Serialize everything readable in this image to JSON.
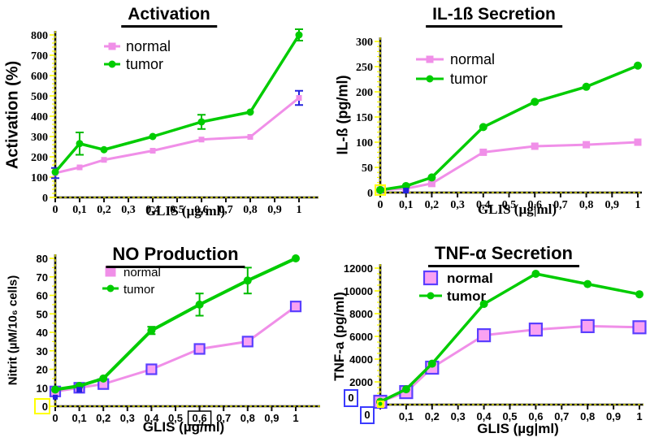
{
  "figure": {
    "background": "#FFFFFF"
  },
  "colors": {
    "normal_line": "#F08FE8",
    "normal_marker_fill": "#F9A2F2",
    "normal_marker_outline": "#5A3FFF",
    "tumor_line": "#00CC00",
    "error_blue": "#2222DD",
    "tick_yellow": "#FFFF00",
    "axis_black": "#111111",
    "highlight_blue_box": "#3B3BFF",
    "highlight_yellow_box": "#FFFF00"
  },
  "chart_data": [
    {
      "type": "line",
      "title": "Activation",
      "ylabel": "Activation (%)",
      "xlabel": "GLIS (µg/ml)",
      "xlim": [
        0,
        1
      ],
      "ylim": [
        0,
        800
      ],
      "x_tick_labels": [
        "0",
        "0,1",
        "0,2",
        "0,3",
        "0,4",
        "0,5",
        "0,6",
        "0,7",
        "0,8",
        "0,9",
        "1"
      ],
      "x_tick_values": [
        0,
        0.1,
        0.2,
        0.3,
        0.4,
        0.5,
        0.6,
        0.7,
        0.8,
        0.9,
        1
      ],
      "y_tick_labels": [
        "0",
        "100",
        "200",
        "300",
        "400",
        "500",
        "600",
        "700",
        "800"
      ],
      "y_tick_values": [
        0,
        100,
        200,
        300,
        400,
        500,
        600,
        700,
        800
      ],
      "grid": false,
      "legend_position": "top-center-inside",
      "x": [
        0,
        0.1,
        0.2,
        0.4,
        0.6,
        0.8,
        1
      ],
      "series": [
        {
          "name": "normal",
          "marker": "square",
          "color": "#F08FE8",
          "values": [
            120,
            148,
            185,
            230,
            285,
            298,
            490
          ],
          "errors": [
            25,
            0,
            0,
            0,
            0,
            0,
            35
          ],
          "error_color": "#2222DD"
        },
        {
          "name": "tumor",
          "marker": "circle",
          "color": "#00CC00",
          "values": [
            125,
            265,
            235,
            300,
            372,
            420,
            800
          ],
          "errors": [
            0,
            55,
            0,
            0,
            35,
            0,
            28
          ],
          "error_color": "#00BB00"
        }
      ],
      "decorations": []
    },
    {
      "type": "line",
      "title": "IL-1ß Secretion",
      "ylabel": "IL-ß (pg/ml)",
      "xlabel": "GLIS (µg|ml)",
      "xlim": [
        0,
        1
      ],
      "ylim": [
        0,
        300
      ],
      "x_tick_labels": [
        "0",
        "0,1",
        "0,2",
        "0,3",
        "0,4",
        "0,5",
        "0,6",
        "0,7",
        "0,8",
        "0,9",
        "1"
      ],
      "x_tick_values": [
        0,
        0.1,
        0.2,
        0.3,
        0.4,
        0.5,
        0.6,
        0.7,
        0.8,
        0.9,
        1
      ],
      "y_tick_labels": [
        "0",
        "50",
        "100",
        "150",
        "200",
        "250",
        "300"
      ],
      "y_tick_values": [
        0,
        50,
        100,
        150,
        200,
        250,
        300
      ],
      "grid": false,
      "legend_position": "top-center-inside",
      "x": [
        0,
        0.1,
        0.2,
        0.4,
        0.6,
        0.8,
        1
      ],
      "series": [
        {
          "name": "normal",
          "marker": "square",
          "color": "#F08FE8",
          "values": [
            5,
            8,
            18,
            80,
            92,
            95,
            100
          ],
          "errors": [
            0,
            0,
            0,
            0,
            0,
            0,
            0
          ],
          "error_color": "#2222DD"
        },
        {
          "name": "tumor",
          "marker": "circle",
          "color": "#00CC00",
          "values": [
            5,
            13,
            30,
            130,
            180,
            210,
            252
          ],
          "errors": [
            0,
            0,
            0,
            0,
            0,
            0,
            0
          ],
          "error_color": "#00BB00"
        }
      ],
      "decorations": [
        "yellow-box-around-origin-marker",
        "blue-square-near-x-0.1"
      ]
    },
    {
      "type": "line",
      "title": "NO Production",
      "ylabel": "Nitrit (µM/10₆ cells)",
      "xlabel": "GLIS (µg/ml)",
      "xlim": [
        0,
        1
      ],
      "ylim": [
        0,
        80
      ],
      "x_tick_labels": [
        "0",
        "0,1",
        "0,2",
        "0,3",
        "0,4",
        "0,5",
        "0,6",
        "0,7",
        "0,8",
        "0,9",
        "1"
      ],
      "x_tick_values": [
        0,
        0.1,
        0.2,
        0.3,
        0.4,
        0.5,
        0.6,
        0.7,
        0.8,
        0.9,
        1
      ],
      "y_tick_labels": [
        "0",
        "10",
        "20",
        "30",
        "40",
        "50",
        "60",
        "70",
        "80"
      ],
      "y_tick_values": [
        0,
        10,
        20,
        30,
        40,
        50,
        60,
        70,
        80
      ],
      "grid": false,
      "legend_position": "top-left-inside",
      "x": [
        0,
        0.1,
        0.2,
        0.4,
        0.6,
        0.8,
        1
      ],
      "series": [
        {
          "name": "normal",
          "marker": "square-outlined",
          "color": "#F08FE8",
          "values": [
            8,
            10,
            12,
            20,
            31,
            35,
            54
          ],
          "errors": [
            0,
            0,
            0,
            0,
            0,
            0,
            0
          ],
          "error_color": "#2222DD"
        },
        {
          "name": "tumor",
          "marker": "circle",
          "color": "#00CC00",
          "values": [
            9,
            11,
            15,
            41,
            55,
            68,
            80
          ],
          "errors": [
            0,
            0,
            0,
            2,
            6,
            7,
            0
          ],
          "error_color": "#00BB00"
        }
      ],
      "decorations": [
        "yellow-box-y-zero-label",
        "black-box-x-tick-0.6",
        "blue-square-origin",
        "blue-square-near-x-0.1"
      ],
      "boxed_x_tick": "0,6",
      "boxed_y_tick": "0"
    },
    {
      "type": "line",
      "title": "TNF-α Secretion",
      "ylabel": "TNF-a (pg/ml)",
      "xlabel": "GLIS (µg|ml)",
      "xlim": [
        0,
        1
      ],
      "ylim": [
        0,
        12000
      ],
      "x_tick_labels": [
        "0",
        "0,1",
        "0,2",
        "0,3",
        "0,4",
        "0,5",
        "0,6",
        "0,7",
        "0,8",
        "0,9",
        "1"
      ],
      "x_tick_values": [
        0,
        0.1,
        0.2,
        0.3,
        0.4,
        0.5,
        0.6,
        0.7,
        0.8,
        0.9,
        1
      ],
      "y_tick_labels": [
        "0",
        "2000",
        "4000",
        "6000",
        "8000",
        "10000",
        "12000"
      ],
      "y_tick_values": [
        0,
        2000,
        4000,
        6000,
        8000,
        10000,
        12000
      ],
      "grid": false,
      "legend_position": "top-left-inside",
      "x": [
        0,
        0.1,
        0.2,
        0.4,
        0.6,
        0.8,
        1
      ],
      "series": [
        {
          "name": "normal",
          "marker": "square-outlined",
          "color": "#F08FE8",
          "values": [
            250,
            1100,
            3250,
            6100,
            6600,
            6900,
            6800
          ],
          "errors": [
            0,
            0,
            0,
            0,
            0,
            0,
            0
          ],
          "error_color": "#2222DD"
        },
        {
          "name": "tumor",
          "marker": "circle",
          "color": "#00CC00",
          "values": [
            250,
            1350,
            3600,
            8850,
            11500,
            10600,
            9700
          ],
          "errors": [
            0,
            0,
            0,
            0,
            0,
            0,
            0
          ],
          "error_color": "#00BB00"
        }
      ],
      "decorations": [
        "blue-box-y-zero-label",
        "blue-box-x-zero-label",
        "yellow-square-origin"
      ],
      "boxed_y_tick": "0",
      "boxed_x_tick": "0"
    }
  ]
}
